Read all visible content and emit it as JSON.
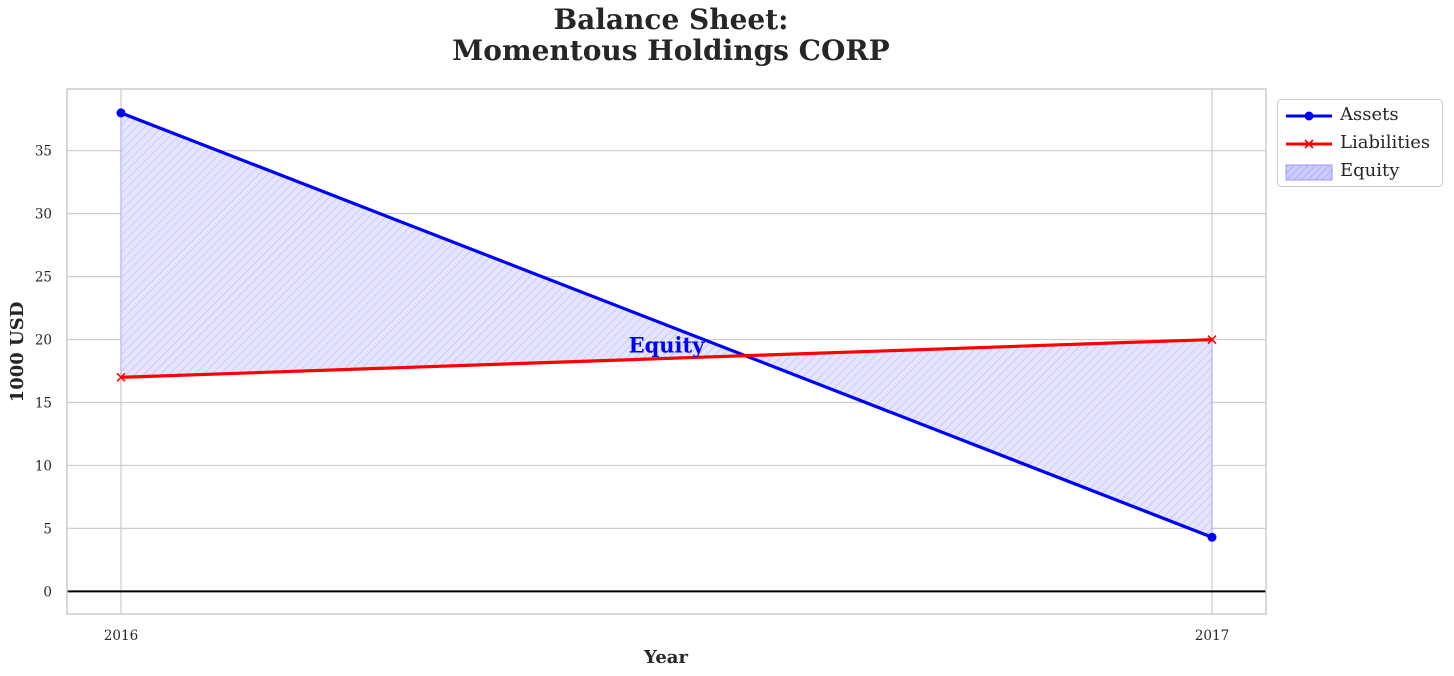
{
  "chart_data": {
    "type": "area",
    "title_line1": "Balance Sheet:",
    "title_line2": "Momentous Holdings CORP",
    "xlabel": "Year",
    "ylabel": "1000 USD",
    "x": [
      "2016",
      "2017"
    ],
    "ylim": [
      -1.8,
      39.9
    ],
    "yticks": [
      0,
      5,
      10,
      15,
      20,
      25,
      30,
      35
    ],
    "grid": true,
    "legend_position": "outside-top-right",
    "series": [
      {
        "name": "Assets",
        "values": [
          38.0,
          4.3
        ],
        "color": "#0000ff",
        "marker": "circle"
      },
      {
        "name": "Liabilities",
        "values": [
          17.0,
          20.0
        ],
        "color": "#ff0000",
        "marker": "x"
      }
    ],
    "fill": {
      "name": "Equity",
      "between": [
        "Assets",
        "Liabilities"
      ],
      "color": "#0000ff",
      "hatch": "diagonal"
    },
    "annotation": {
      "text": "Equity",
      "color": "#0000ff",
      "x": 0.5,
      "y": 19.6
    }
  }
}
